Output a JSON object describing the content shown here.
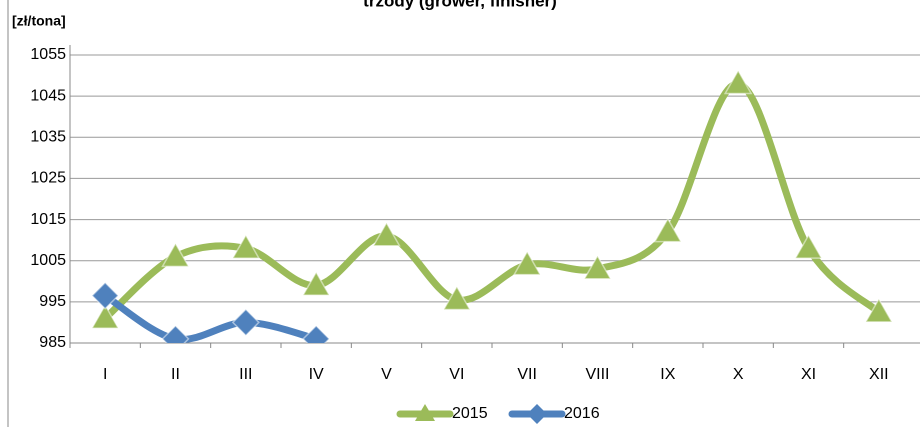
{
  "chart_data": {
    "type": "line",
    "title": "trzody (grower, finisher)",
    "y_label": "[zł/tona]",
    "categories": [
      "I",
      "II",
      "III",
      "IV",
      "V",
      "VI",
      "VII",
      "VIII",
      "IX",
      "X",
      "XI",
      "XII"
    ],
    "series": [
      {
        "name": "2015",
        "color": "#9bbb59",
        "marker": "triangle",
        "values": [
          991,
          1006,
          1008,
          999,
          1011,
          995.5,
          1004,
          1003,
          1012,
          1048,
          1008,
          992.5
        ]
      },
      {
        "name": "2016",
        "color": "#4f81bd",
        "marker": "diamond",
        "values": [
          996.5,
          986,
          990,
          986,
          null,
          null,
          null,
          null,
          null,
          null,
          null,
          null
        ]
      }
    ],
    "ylim": [
      985,
      1055
    ],
    "yticks": [
      985,
      995,
      1005,
      1015,
      1025,
      1035,
      1045,
      1055
    ],
    "grid": true,
    "smooth": true,
    "legend": "bottom"
  }
}
